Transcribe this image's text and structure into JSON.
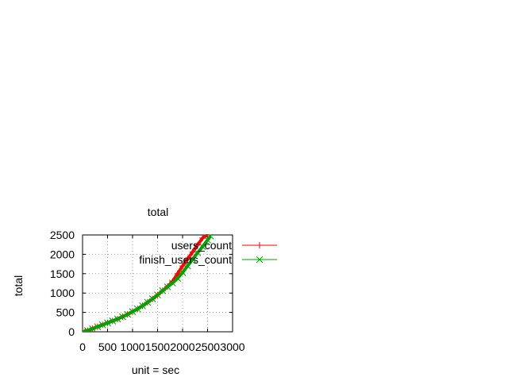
{
  "chart_data": {
    "type": "line",
    "title": "total",
    "xlabel": "unit = sec",
    "ylabel": "total",
    "xlim": [
      0,
      3000
    ],
    "ylim": [
      0,
      2500
    ],
    "xticks": [
      0,
      500,
      1000,
      1500,
      2000,
      2500,
      3000
    ],
    "xtick_labels": [
      "0",
      "500",
      "1000",
      "1500",
      "2000",
      "2500",
      "3000"
    ],
    "yticks": [
      0,
      500,
      1000,
      1500,
      2000,
      2500
    ],
    "ytick_labels": [
      "0",
      "500",
      "1000",
      "1500",
      "2000",
      "2500"
    ],
    "grid": true,
    "legend_position": "top-right, outside plot area",
    "series": [
      {
        "name": "users_count",
        "color": "#ff0000",
        "marker": "plus",
        "x": [
          0,
          100,
          200,
          300,
          400,
          500,
          600,
          700,
          800,
          900,
          1000,
          1100,
          1200,
          1300,
          1400,
          1500,
          1600,
          1700,
          1800,
          1900,
          2000,
          2100,
          2200,
          2300,
          2400,
          2500
        ],
        "y": [
          0,
          30,
          80,
          130,
          180,
          230,
          280,
          330,
          390,
          450,
          520,
          590,
          670,
          760,
          850,
          950,
          1060,
          1170,
          1300,
          1500,
          1700,
          1880,
          2060,
          2240,
          2420,
          2500
        ]
      },
      {
        "name": "finish_users_count",
        "color": "#00a000",
        "marker": "cross",
        "x": [
          0,
          100,
          200,
          300,
          400,
          500,
          600,
          700,
          800,
          900,
          1000,
          1100,
          1200,
          1300,
          1400,
          1500,
          1600,
          1700,
          1800,
          1900,
          2000,
          2100,
          2200,
          2300,
          2400,
          2500,
          2560
        ],
        "y": [
          0,
          30,
          80,
          130,
          180,
          230,
          280,
          330,
          390,
          450,
          520,
          590,
          670,
          760,
          850,
          950,
          1060,
          1160,
          1260,
          1380,
          1530,
          1700,
          1870,
          2040,
          2200,
          2370,
          2470
        ]
      }
    ]
  }
}
